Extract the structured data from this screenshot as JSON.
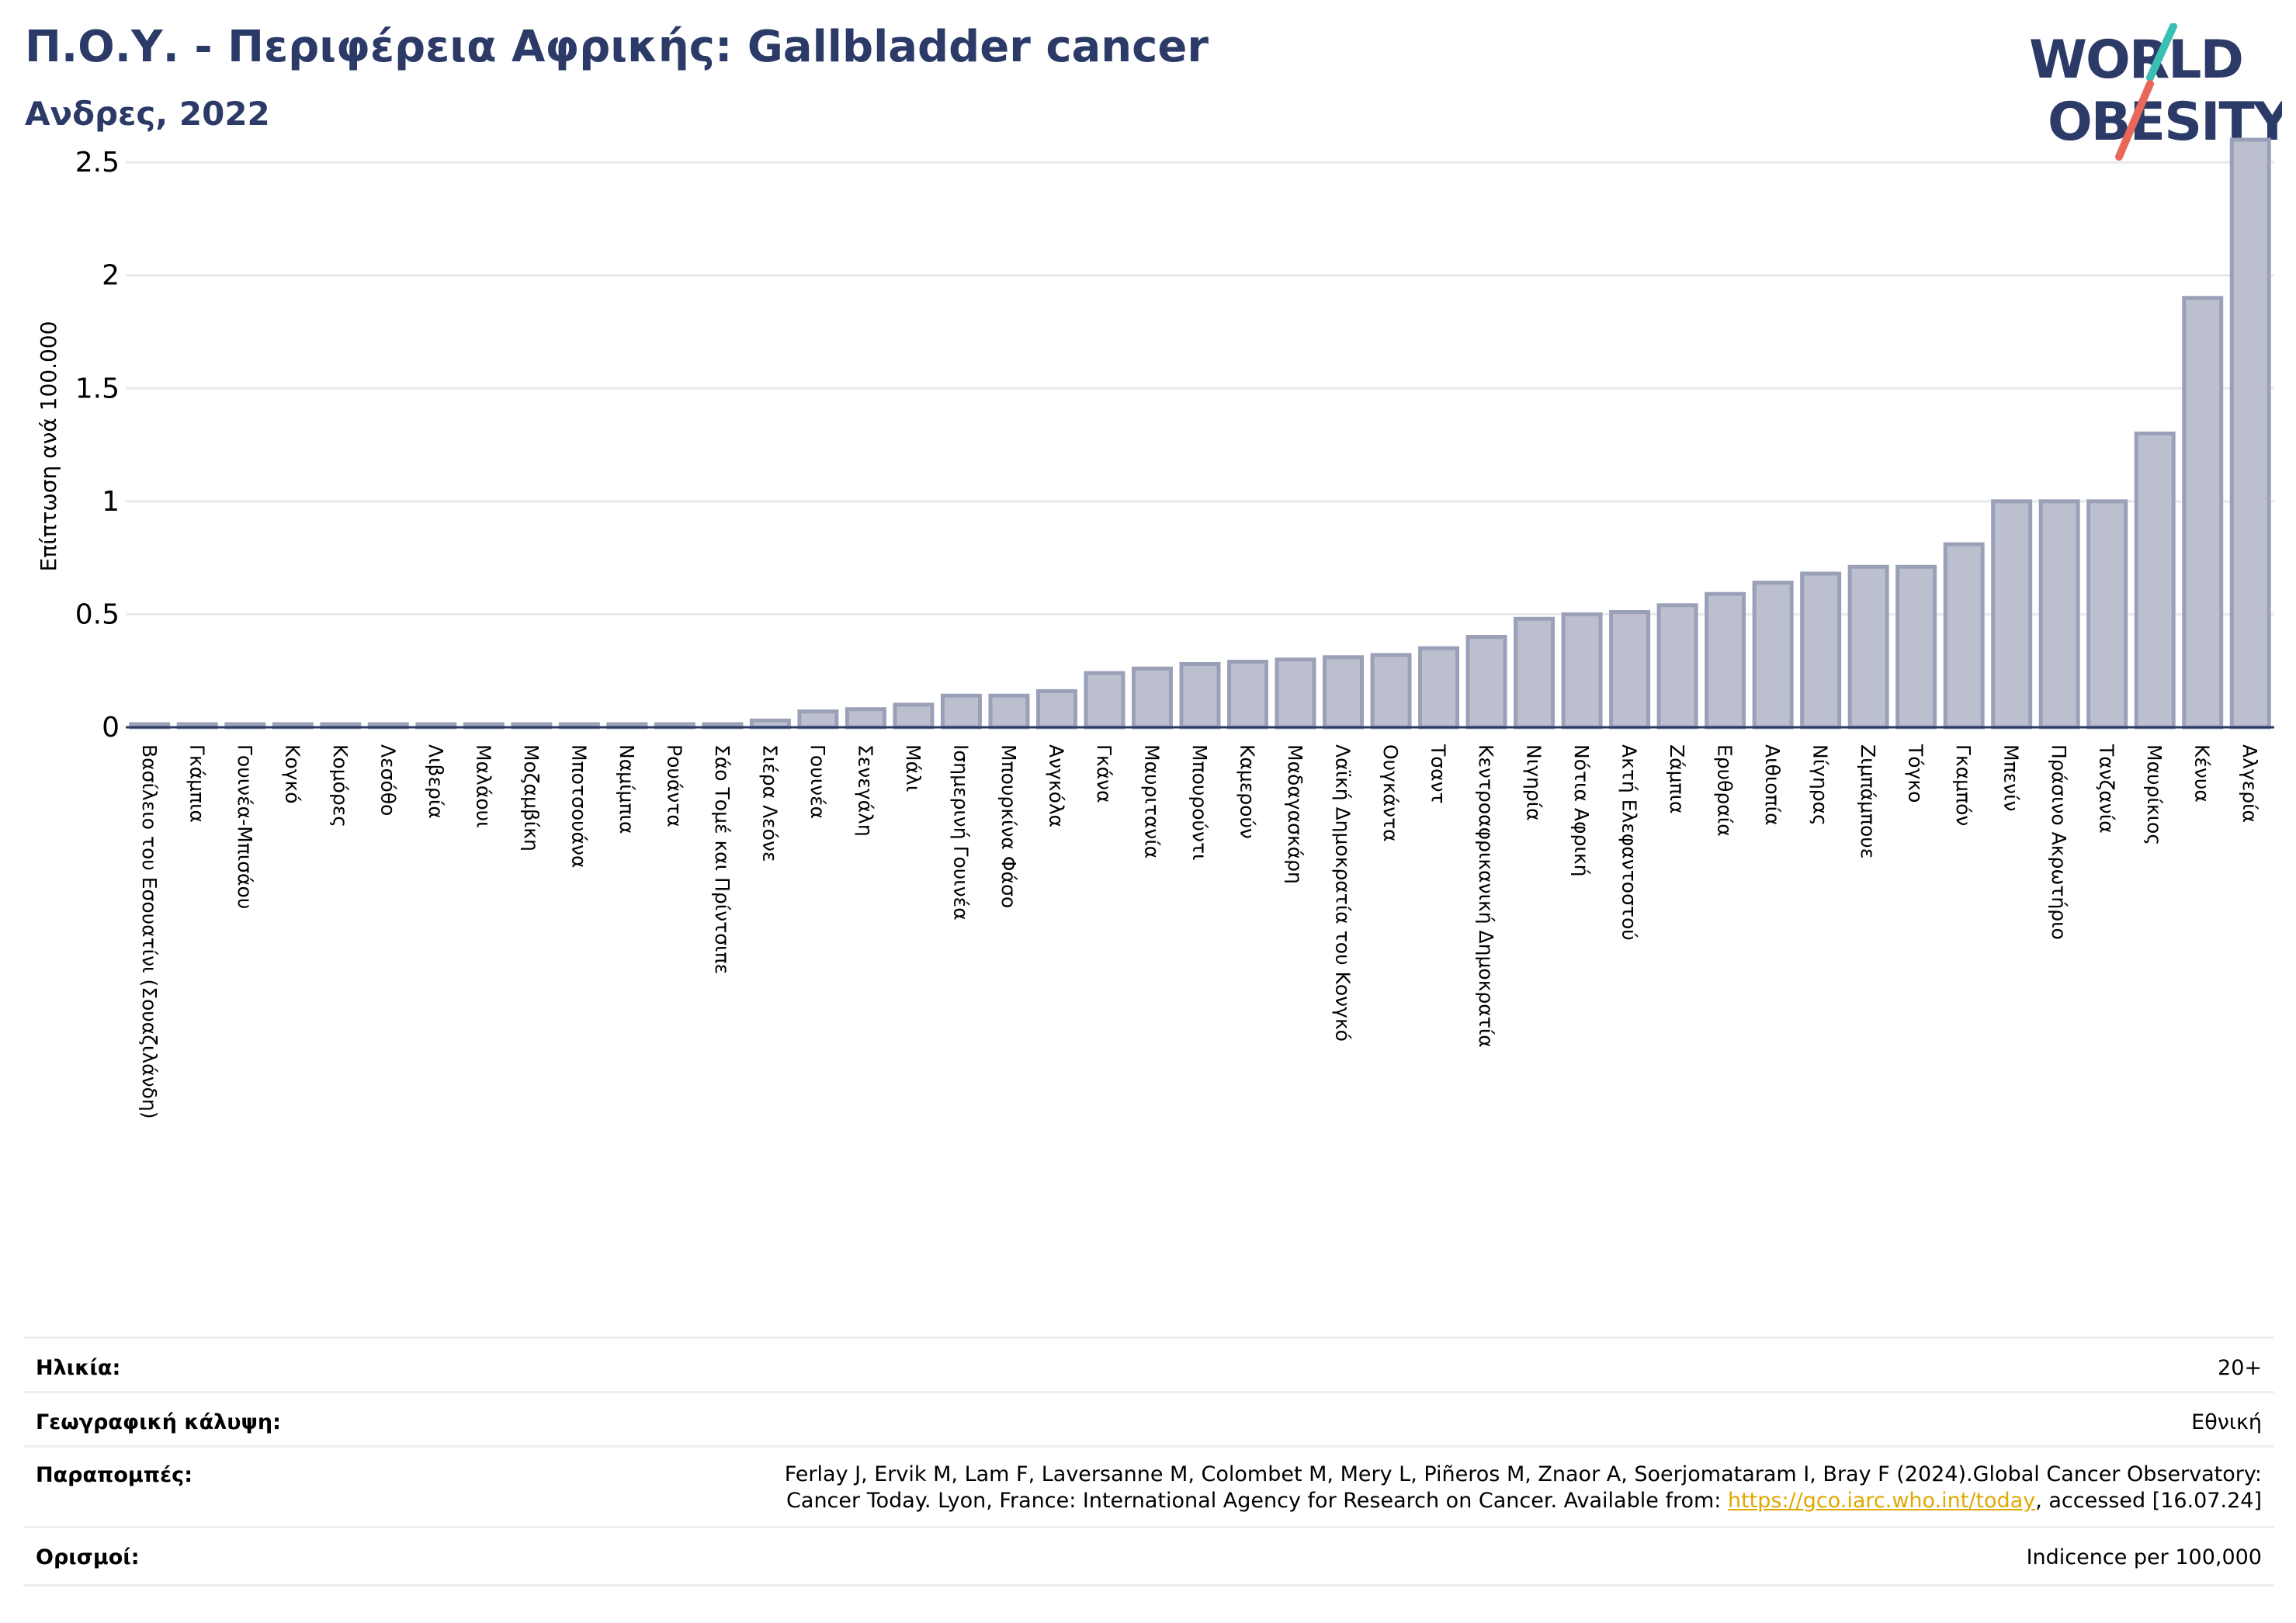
{
  "title": "Π.Ο.Υ. - Περιφέρεια Αφρικής: Gallbladder cancer",
  "subtitle": "Ανδρες, 2022",
  "logo": {
    "line1": "WORLD",
    "line2": "OBESITY",
    "accent_teal": "#3bbfb5",
    "accent_red": "#e8685a",
    "navy": "#2b3a67"
  },
  "chart_data": {
    "type": "bar",
    "ylabel": "Επίπτωση ανά 100.000",
    "ylim": [
      0,
      2.6
    ],
    "yticks": [
      0,
      0.5,
      1,
      1.5,
      2,
      2.5
    ],
    "ytick_labels": [
      "0",
      "0.5",
      "1",
      "1.5",
      "2",
      "2.5"
    ],
    "bar_color": "#bcbfcd",
    "bar_edge_color": "#9aa0b8",
    "grid": true,
    "categories": [
      "Βασίλειο του Εσουατίνι (Σουαζιλάνδη)",
      "Γκάμπια",
      "Γουινέα-Μπισάου",
      "Κογκό",
      "Κομόρες",
      "Λεσόθο",
      "Λιβερία",
      "Μαλάουι",
      "Μοζαμβίκη",
      "Μποτσουάνα",
      "Ναμίμπια",
      "Ρουάντα",
      "Σάο Τομέ και Πρίντσιπε",
      "Σιέρα Λεόνε",
      "Γουινέα",
      "Σενεγάλη",
      "Μάλι",
      "Ισημερινή Γουινέα",
      "Μπουρκίνα Φάσο",
      "Ανγκόλα",
      "Γκάνα",
      "Μαυριτανία",
      "Μπουρούντι",
      "Καμερούν",
      "Μαδαγασκάρη",
      "Λαϊκή Δημοκρατία του Κονγκό",
      "Ουγκάντα",
      "Τσαντ",
      "Κεντροαφρικανική Δημοκρατία",
      "Νιγηρία",
      "Νότια Αφρική",
      "Ακτή Ελεφαντοστού",
      "Ζάμπια",
      "Ερυθραία",
      "Αιθιοπία",
      "Νίγηρας",
      "Ζιμπάμπουε",
      "Τόγκο",
      "Γκαμπόν",
      "Μπενίν",
      "Πράσινο Ακρωτήριο",
      "Τανζανία",
      "Μαυρίκιος",
      "Κένυα",
      "Αλγερία"
    ],
    "values": [
      0.005,
      0.005,
      0.005,
      0.005,
      0.005,
      0.005,
      0.005,
      0.005,
      0.005,
      0.005,
      0.005,
      0.005,
      0.005,
      0.03,
      0.07,
      0.08,
      0.1,
      0.14,
      0.14,
      0.16,
      0.24,
      0.26,
      0.28,
      0.29,
      0.3,
      0.31,
      0.32,
      0.35,
      0.4,
      0.48,
      0.5,
      0.51,
      0.54,
      0.59,
      0.64,
      0.68,
      0.71,
      0.71,
      0.81,
      1.0,
      1.0,
      1.0,
      1.3,
      1.9,
      2.6
    ]
  },
  "info": {
    "age_label": "Ηλικία:",
    "age_value": "20+",
    "coverage_label": "Γεωγραφική κάλυψη:",
    "coverage_value": "Εθνική",
    "refs_label": "Παραπομπές:",
    "refs_line1": "Ferlay J, Ervik M, Lam F, Laversanne M, Colombet M, Mery L, Piñeros M, Znaor A, Soerjomataram I, Bray F (2024).Global Cancer Observatory:",
    "refs_line2_pre": "Cancer Today. Lyon, France: International Agency for Research on Cancer. Available from: ",
    "refs_link": "https://gco.iarc.who.int/today",
    "refs_line2_post": ", accessed [16.07.24]",
    "def_label": "Ορισμοί:",
    "def_value": "Indicence per 100,000"
  }
}
